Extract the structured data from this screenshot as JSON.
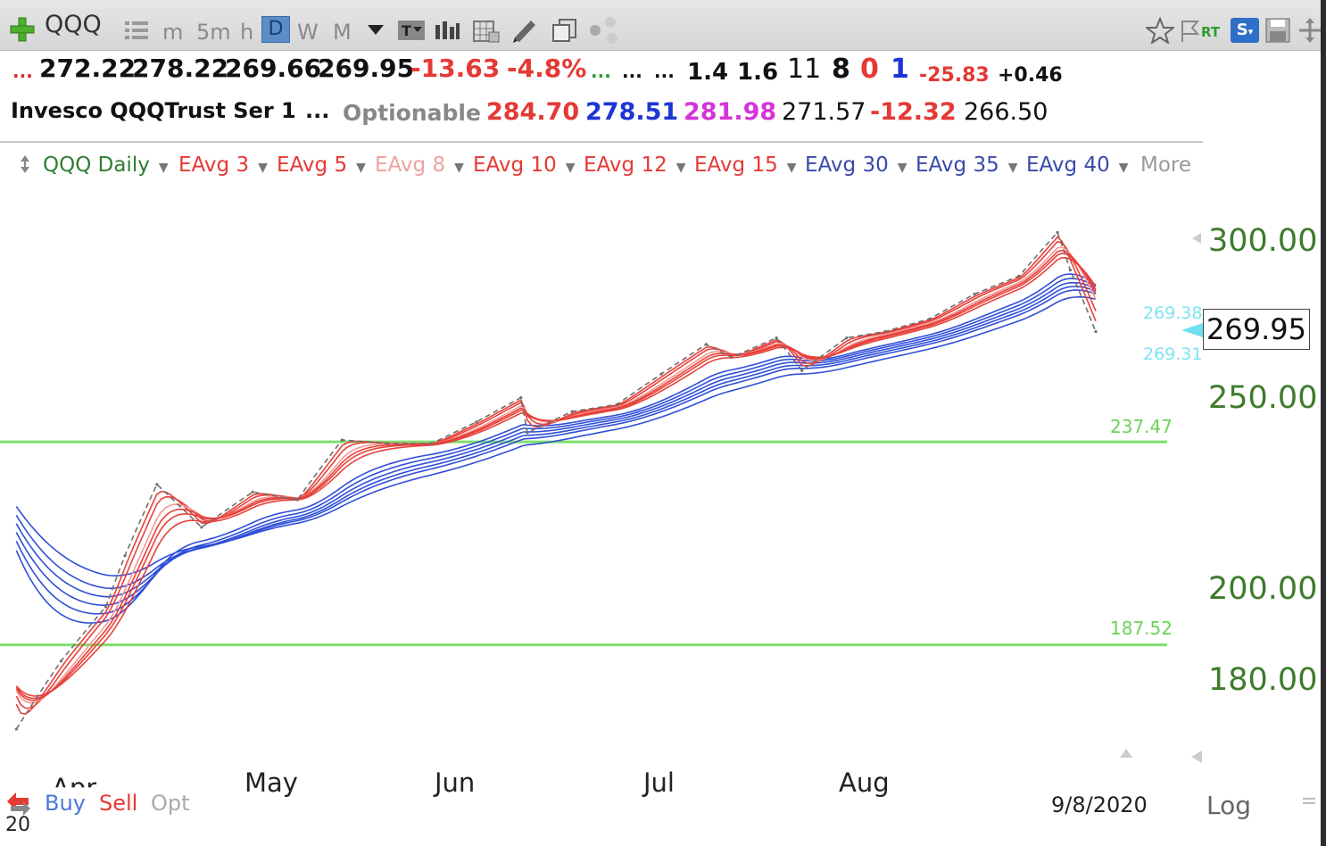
{
  "toolbar": {
    "symbol": "QQQ",
    "periods": [
      "m",
      "5m",
      "h",
      "D",
      "W",
      "M"
    ],
    "active_period": "D",
    "rt_label": "RT",
    "s_label": "S"
  },
  "quote": {
    "open": "272.22",
    "high": "278.22",
    "low": "269.66",
    "last": "269.95",
    "change": "-13.63",
    "change_pct": "-4.8%",
    "dots1": "...",
    "dots2": "...",
    "dots3": "...",
    "dots4": "...",
    "v1": "1.4",
    "v2": "1.6",
    "v3": "11",
    "v4": "8",
    "v5": "0",
    "v6": "1",
    "v7": "-25.83",
    "v8": "+0.46"
  },
  "info": {
    "name": "Invesco QQQTrust Ser 1",
    "dots": "...",
    "optionable": "Optionable",
    "p1": "284.70",
    "p2": "278.51",
    "p3": "281.98",
    "p4": "271.57",
    "p5": "-12.32",
    "p6": "266.50"
  },
  "indicators": [
    {
      "label": "QQQ Daily",
      "color": "#2e7d32"
    },
    {
      "label": "EAvg 3",
      "color": "#e53935"
    },
    {
      "label": "EAvg 5",
      "color": "#e53935"
    },
    {
      "label": "EAvg 8",
      "color": "#f0a0a0"
    },
    {
      "label": "EAvg 10",
      "color": "#e53935"
    },
    {
      "label": "EAvg 12",
      "color": "#e53935"
    },
    {
      "label": "EAvg 15",
      "color": "#e53935"
    },
    {
      "label": "EAvg 30",
      "color": "#3949ab"
    },
    {
      "label": "EAvg 35",
      "color": "#3949ab"
    },
    {
      "label": "EAvg 40",
      "color": "#3949ab"
    }
  ],
  "more_label": "More",
  "chart_data": {
    "type": "line",
    "y_scale": "log",
    "y_ticks": [
      "300.00",
      "250.00",
      "200.00",
      "180.00"
    ],
    "y_tick_values": [
      300,
      250,
      200,
      180
    ],
    "x_ticks": [
      "Apr",
      "May",
      "Jun",
      "Jul",
      "Aug"
    ],
    "last_price": "269.95",
    "hlines": [
      {
        "label": "237.47",
        "value": 237.47,
        "color": "#7ee06a"
      },
      {
        "label": "187.52",
        "value": 187.52,
        "color": "#7ee06a"
      }
    ],
    "price_labels": [
      "269.38",
      "269.31"
    ],
    "series": [
      {
        "name": "QQQ Daily",
        "color": "#777777",
        "dates": [
          "3/23",
          "3/30",
          "4/6",
          "4/9",
          "4/14",
          "4/21",
          "4/29",
          "5/6",
          "5/13",
          "5/20",
          "5/27",
          "6/3",
          "6/10",
          "6/11",
          "6/18",
          "6/25",
          "7/2",
          "7/9",
          "7/13",
          "7/20",
          "7/24",
          "7/31",
          "8/6",
          "8/13",
          "8/20",
          "8/27",
          "9/2",
          "9/4",
          "9/8"
        ],
        "values": [
          170,
          184,
          196,
          208,
          226,
          215,
          224,
          222,
          238,
          237,
          237,
          243,
          250,
          240,
          246,
          248,
          257,
          266,
          262,
          268,
          258,
          268,
          270,
          274,
          282,
          288,
          303,
          290,
          269.95
        ]
      }
    ]
  },
  "bottom": {
    "buy": "Buy",
    "sell": "Sell",
    "opt": "Opt",
    "date": "9/8/2020",
    "log": "Log",
    "yr": "20"
  }
}
